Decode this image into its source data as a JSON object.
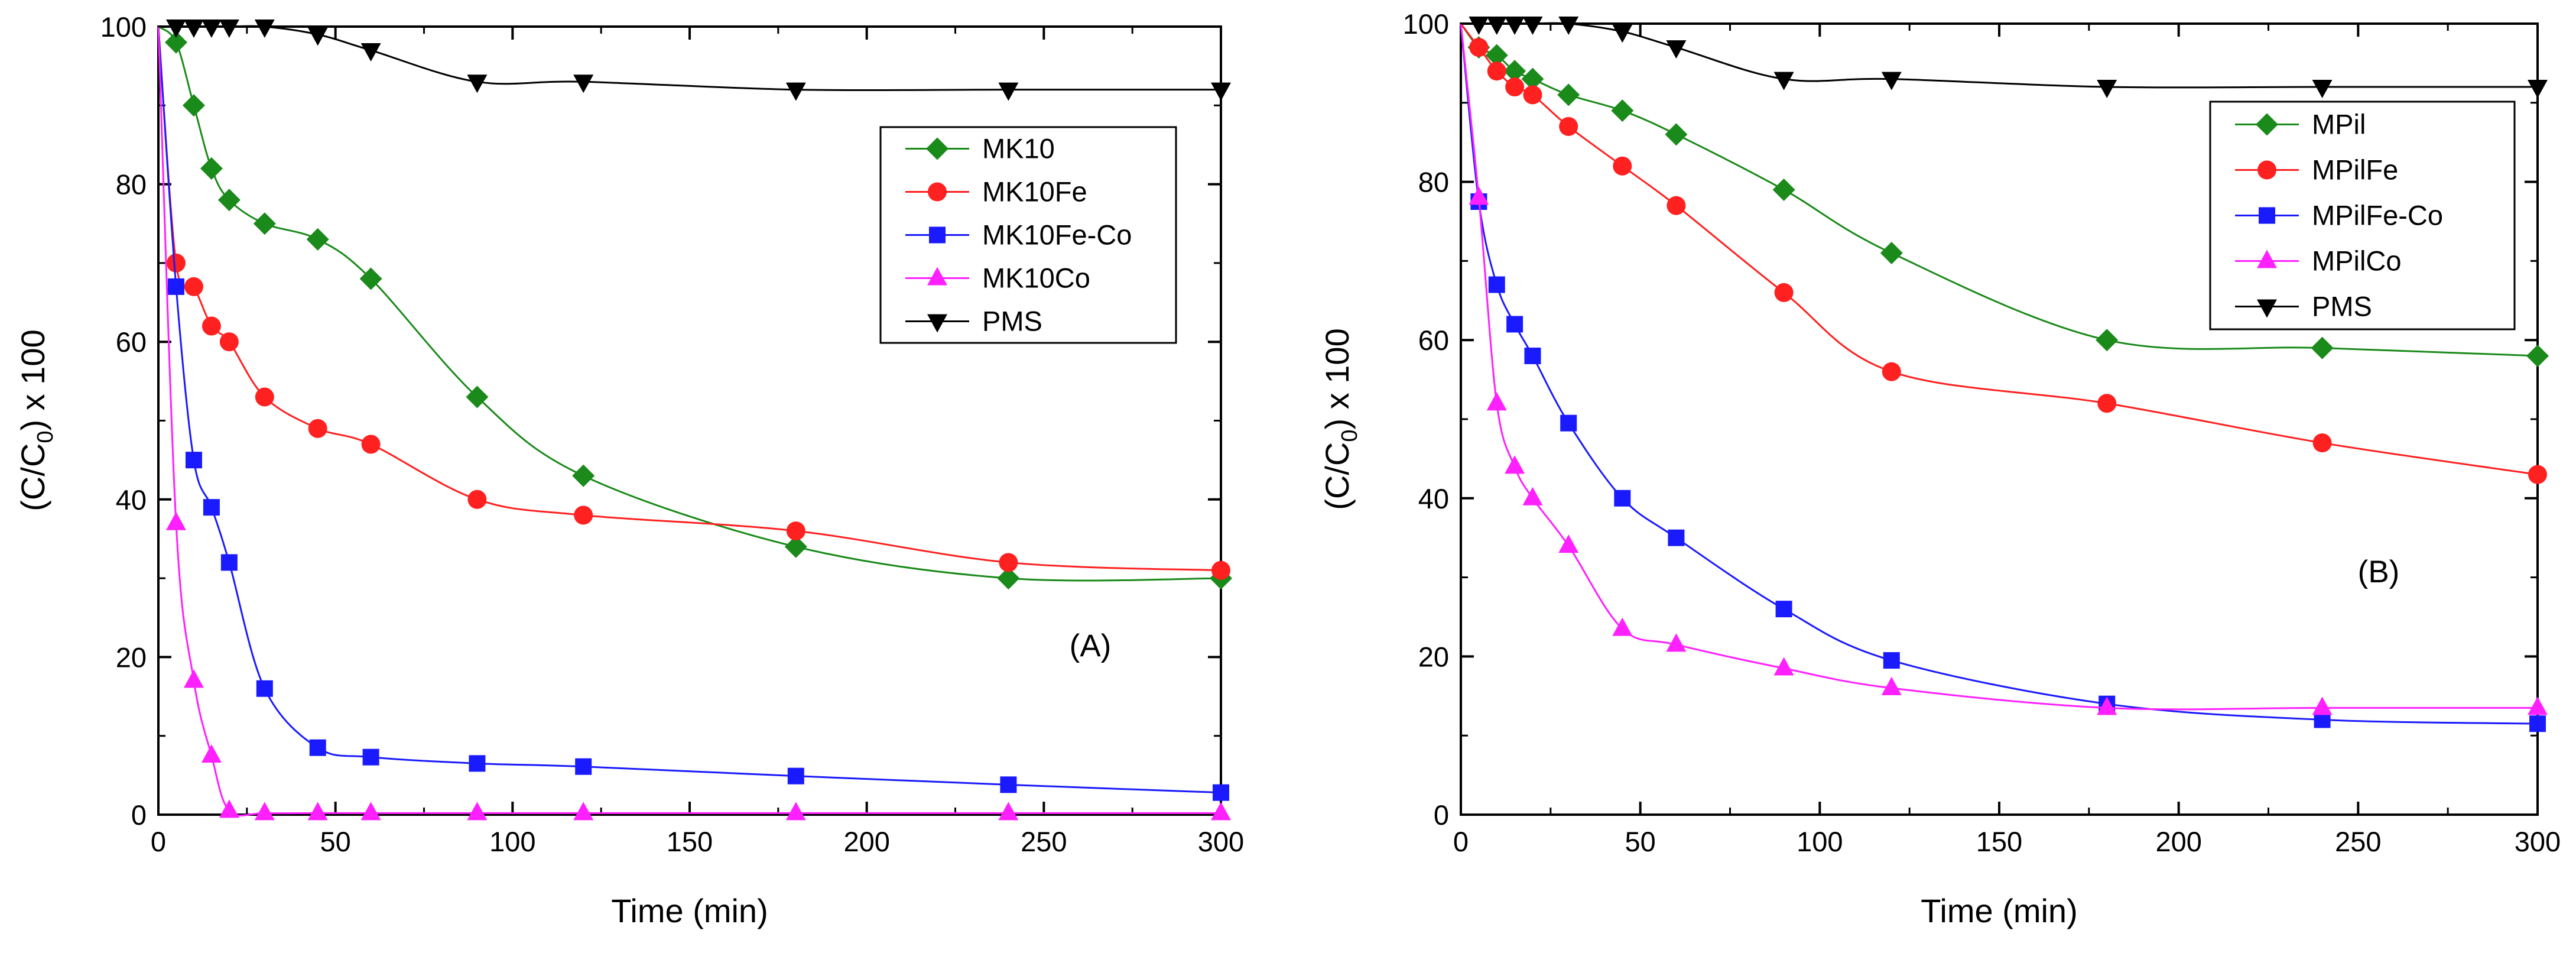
{
  "chart_data": [
    {
      "type": "line",
      "panel_label": "(A)",
      "xlabel": "Time (min)",
      "ylabel": {
        "prefix": "(C/C",
        "subscript": "0",
        "suffix": ") x 100"
      },
      "xlim": [
        0,
        300
      ],
      "ylim": [
        0,
        100
      ],
      "xticks": [
        "0",
        "50",
        "100",
        "150",
        "200",
        "250",
        "300"
      ],
      "yticks": [
        "0",
        "20",
        "40",
        "60",
        "80",
        "100"
      ],
      "legend_position": "top-right",
      "series": [
        {
          "name": "MK10",
          "color": "#1a8a1a",
          "marker": "diamond",
          "x": [
            0,
            5,
            10,
            15,
            20,
            30,
            45,
            60,
            90,
            120,
            180,
            240,
            300
          ],
          "values": [
            100,
            98,
            90,
            82,
            78,
            75,
            73,
            68,
            53,
            43,
            34,
            30,
            30
          ]
        },
        {
          "name": "MK10Fe",
          "color": "#ff2020",
          "marker": "circle",
          "x": [
            0,
            5,
            10,
            15,
            20,
            30,
            45,
            60,
            90,
            120,
            180,
            240,
            300
          ],
          "values": [
            100,
            70,
            67,
            62,
            60,
            53,
            49,
            47,
            40,
            38,
            36,
            32,
            31
          ]
        },
        {
          "name": "MK10Fe-Co",
          "color": "#1a1aff",
          "marker": "square",
          "x": [
            0,
            5,
            10,
            15,
            20,
            30,
            45,
            60,
            90,
            120,
            180,
            240,
            300
          ],
          "values": [
            100,
            67,
            45,
            39,
            32,
            16,
            8.5,
            7.3,
            6.5,
            6.1,
            4.9,
            3.8,
            2.8
          ]
        },
        {
          "name": "MK10Co",
          "color": "#ff20ff",
          "marker": "triangle-up",
          "x": [
            0,
            5,
            10,
            15,
            20,
            30,
            45,
            60,
            90,
            120,
            180,
            240,
            300
          ],
          "values": [
            100,
            37,
            17,
            7.5,
            0.5,
            0.2,
            0.2,
            0.2,
            0.2,
            0.2,
            0.2,
            0.2,
            0.2
          ]
        },
        {
          "name": "PMS",
          "color": "#000000",
          "marker": "triangle-down",
          "x": [
            0,
            5,
            10,
            15,
            20,
            30,
            45,
            60,
            90,
            120,
            180,
            240,
            300
          ],
          "values": [
            100,
            100,
            100,
            100,
            100,
            100,
            99,
            97,
            93,
            93,
            92,
            92,
            92
          ]
        }
      ]
    },
    {
      "type": "line",
      "panel_label": "(B)",
      "xlabel": "Time (min)",
      "ylabel": {
        "prefix": "(C/C",
        "subscript": "0",
        "suffix": ") x 100"
      },
      "xlim": [
        0,
        300
      ],
      "ylim": [
        0,
        100
      ],
      "xticks": [
        "0",
        "50",
        "100",
        "150",
        "200",
        "250",
        "300"
      ],
      "yticks": [
        "0",
        "20",
        "40",
        "60",
        "80",
        "100"
      ],
      "legend_position": "top-right",
      "series": [
        {
          "name": "MPil",
          "color": "#1a8a1a",
          "marker": "diamond",
          "x": [
            0,
            5,
            10,
            15,
            20,
            30,
            45,
            60,
            90,
            120,
            180,
            240,
            300
          ],
          "values": [
            100,
            97,
            96,
            94,
            93,
            91,
            89,
            86,
            79,
            71,
            60,
            59,
            58
          ]
        },
        {
          "name": "MPilFe",
          "color": "#ff2020",
          "marker": "circle",
          "x": [
            0,
            5,
            10,
            15,
            20,
            30,
            45,
            60,
            90,
            120,
            180,
            240,
            300
          ],
          "values": [
            100,
            97,
            94,
            92,
            91,
            87,
            82,
            77,
            66,
            56,
            52,
            47,
            43
          ]
        },
        {
          "name": "MPilFe-Co",
          "color": "#1a1aff",
          "marker": "square",
          "x": [
            0,
            5,
            10,
            15,
            20,
            30,
            45,
            60,
            90,
            120,
            180,
            240,
            300
          ],
          "values": [
            100,
            77.5,
            67,
            62,
            58,
            49.5,
            40,
            35,
            26,
            19.5,
            14,
            12,
            11.5
          ]
        },
        {
          "name": "MPilCo",
          "color": "#ff20ff",
          "marker": "triangle-up",
          "x": [
            0,
            5,
            10,
            15,
            20,
            30,
            45,
            60,
            90,
            120,
            180,
            240,
            300
          ],
          "values": [
            100,
            78,
            52,
            44,
            40,
            34,
            23.5,
            21.5,
            18.5,
            16,
            13.5,
            13.5,
            13.5
          ]
        },
        {
          "name": "PMS",
          "color": "#000000",
          "marker": "triangle-down",
          "x": [
            0,
            5,
            10,
            15,
            20,
            30,
            45,
            60,
            90,
            120,
            180,
            240,
            300
          ],
          "values": [
            100,
            100,
            100,
            100,
            100,
            100,
            99,
            97,
            93,
            93,
            92,
            92,
            92
          ]
        }
      ]
    }
  ]
}
